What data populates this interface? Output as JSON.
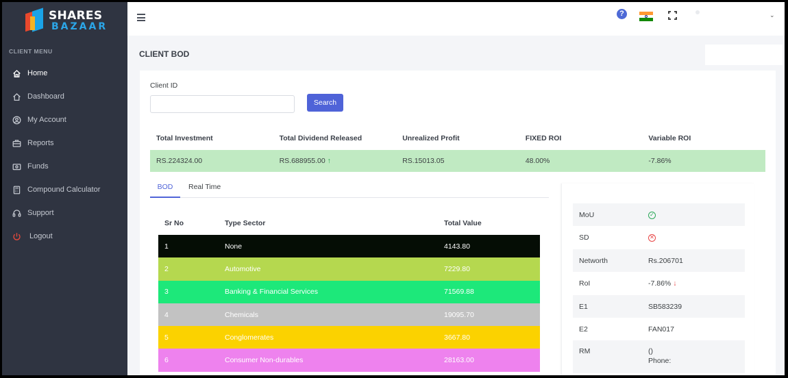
{
  "brand": {
    "line1": "SHARES",
    "line2": "BAZAAR"
  },
  "sidebar": {
    "menu_title": "CLIENT MENU",
    "items": [
      {
        "label": "Home",
        "icon": "home-icon",
        "active": true
      },
      {
        "label": "Dashboard",
        "icon": "dashboard-icon"
      },
      {
        "label": "My Account",
        "icon": "user-icon"
      },
      {
        "label": "Reports",
        "icon": "briefcase-icon"
      },
      {
        "label": "Funds",
        "icon": "wallet-icon"
      },
      {
        "label": "Compound Calculator",
        "icon": "calculator-icon"
      },
      {
        "label": "Support",
        "icon": "headset-icon"
      },
      {
        "label": "Logout",
        "icon": "power-icon"
      }
    ]
  },
  "topbar": {
    "help": "?",
    "caret": "⌄"
  },
  "page": {
    "title": "CLIENT BOD"
  },
  "search": {
    "label": "Client ID",
    "value": "",
    "button": "Search"
  },
  "summary": {
    "headers": [
      "Total Investment",
      "Total Dividend Released",
      "Unrealized Profit",
      "FIXED ROI",
      "Variable ROI"
    ],
    "values": [
      "RS.224324.00",
      "RS.688955.00",
      "RS.15013.05",
      "48.00%",
      "-7.86%"
    ],
    "row_color": "#c0eac2"
  },
  "tabs": [
    "BOD",
    "Real Time"
  ],
  "sector_table": {
    "headers": [
      "Sr No",
      "Type Sector",
      "Total Value"
    ],
    "rows": [
      {
        "sr": "1",
        "sector": "None",
        "value": "4143.80",
        "color": "#050d05"
      },
      {
        "sr": "2",
        "sector": "Automotive",
        "value": "7229.80",
        "color": "#b5d84f"
      },
      {
        "sr": "3",
        "sector": "Banking & Financial Services",
        "value": "71569.88",
        "color": "#1de87a"
      },
      {
        "sr": "4",
        "sector": "Chemicals",
        "value": "19095.70",
        "color": "#c2c2c2"
      },
      {
        "sr": "5",
        "sector": "Conglomerates",
        "value": "3667.80",
        "color": "#fbd200"
      },
      {
        "sr": "6",
        "sector": "Consumer Non-durables",
        "value": "28163.00",
        "color": "#ee82ee"
      }
    ]
  },
  "client_info": {
    "mou_label": "MoU",
    "sd_label": "SD",
    "networth_label": "Networth",
    "networth_value": "Rs.206701",
    "roi_label": "RoI",
    "roi_value": "-7.86%",
    "e1_label": "E1",
    "e1_value": "SB583239",
    "e2_label": "E2",
    "e2_value": "FAN017",
    "rm_label": "RM",
    "rm_value": "()",
    "rm_phone": "Phone:"
  },
  "colors": {
    "accent": "#4f63d8",
    "sidebar": "#2f3441",
    "positive": "#24a148",
    "negative": "#e84545"
  }
}
